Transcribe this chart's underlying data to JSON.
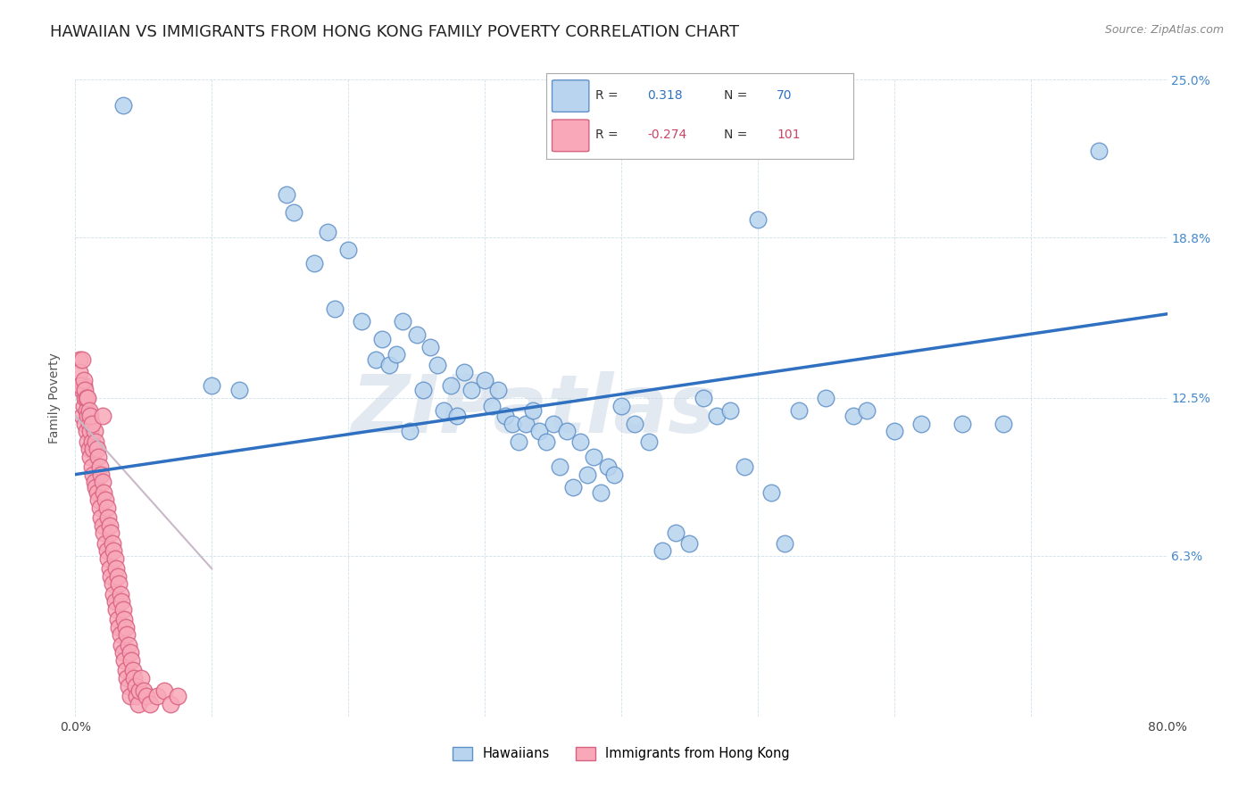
{
  "title": "HAWAIIAN VS IMMIGRANTS FROM HONG KONG FAMILY POVERTY CORRELATION CHART",
  "source_text": "Source: ZipAtlas.com",
  "ylabel": "Family Poverty",
  "xlim": [
    0.0,
    0.8
  ],
  "ylim": [
    0.0,
    0.25
  ],
  "yticks": [
    0.063,
    0.125,
    0.188,
    0.25
  ],
  "ytick_labels": [
    "6.3%",
    "12.5%",
    "18.8%",
    "25.0%"
  ],
  "xtick_labels": [
    "0.0%",
    "",
    "",
    "",
    "",
    "",
    "",
    "",
    "80.0%"
  ],
  "hawaiians_scatter": [
    [
      0.035,
      0.24
    ],
    [
      0.1,
      0.13
    ],
    [
      0.12,
      0.128
    ],
    [
      0.155,
      0.205
    ],
    [
      0.16,
      0.198
    ],
    [
      0.175,
      0.178
    ],
    [
      0.185,
      0.19
    ],
    [
      0.19,
      0.16
    ],
    [
      0.2,
      0.183
    ],
    [
      0.21,
      0.155
    ],
    [
      0.22,
      0.14
    ],
    [
      0.225,
      0.148
    ],
    [
      0.23,
      0.138
    ],
    [
      0.235,
      0.142
    ],
    [
      0.24,
      0.155
    ],
    [
      0.245,
      0.112
    ],
    [
      0.25,
      0.15
    ],
    [
      0.255,
      0.128
    ],
    [
      0.26,
      0.145
    ],
    [
      0.265,
      0.138
    ],
    [
      0.27,
      0.12
    ],
    [
      0.275,
      0.13
    ],
    [
      0.28,
      0.118
    ],
    [
      0.285,
      0.135
    ],
    [
      0.29,
      0.128
    ],
    [
      0.3,
      0.132
    ],
    [
      0.305,
      0.122
    ],
    [
      0.31,
      0.128
    ],
    [
      0.315,
      0.118
    ],
    [
      0.32,
      0.115
    ],
    [
      0.325,
      0.108
    ],
    [
      0.33,
      0.115
    ],
    [
      0.335,
      0.12
    ],
    [
      0.34,
      0.112
    ],
    [
      0.345,
      0.108
    ],
    [
      0.35,
      0.115
    ],
    [
      0.355,
      0.098
    ],
    [
      0.36,
      0.112
    ],
    [
      0.365,
      0.09
    ],
    [
      0.37,
      0.108
    ],
    [
      0.375,
      0.095
    ],
    [
      0.38,
      0.102
    ],
    [
      0.385,
      0.088
    ],
    [
      0.39,
      0.098
    ],
    [
      0.395,
      0.095
    ],
    [
      0.4,
      0.122
    ],
    [
      0.41,
      0.115
    ],
    [
      0.42,
      0.108
    ],
    [
      0.43,
      0.065
    ],
    [
      0.44,
      0.072
    ],
    [
      0.45,
      0.068
    ],
    [
      0.46,
      0.125
    ],
    [
      0.47,
      0.118
    ],
    [
      0.48,
      0.12
    ],
    [
      0.49,
      0.098
    ],
    [
      0.5,
      0.195
    ],
    [
      0.51,
      0.088
    ],
    [
      0.52,
      0.068
    ],
    [
      0.53,
      0.12
    ],
    [
      0.55,
      0.125
    ],
    [
      0.57,
      0.118
    ],
    [
      0.58,
      0.12
    ],
    [
      0.6,
      0.112
    ],
    [
      0.62,
      0.115
    ],
    [
      0.65,
      0.115
    ],
    [
      0.68,
      0.115
    ],
    [
      0.75,
      0.222
    ]
  ],
  "hk_scatter": [
    [
      0.003,
      0.14
    ],
    [
      0.005,
      0.128
    ],
    [
      0.005,
      0.118
    ],
    [
      0.006,
      0.13
    ],
    [
      0.006,
      0.122
    ],
    [
      0.007,
      0.125
    ],
    [
      0.007,
      0.115
    ],
    [
      0.008,
      0.12
    ],
    [
      0.008,
      0.112
    ],
    [
      0.009,
      0.118
    ],
    [
      0.009,
      0.108
    ],
    [
      0.01,
      0.115
    ],
    [
      0.01,
      0.105
    ],
    [
      0.011,
      0.112
    ],
    [
      0.011,
      0.102
    ],
    [
      0.012,
      0.108
    ],
    [
      0.012,
      0.098
    ],
    [
      0.013,
      0.105
    ],
    [
      0.013,
      0.095
    ],
    [
      0.014,
      0.112
    ],
    [
      0.014,
      0.092
    ],
    [
      0.015,
      0.108
    ],
    [
      0.015,
      0.09
    ],
    [
      0.016,
      0.105
    ],
    [
      0.016,
      0.088
    ],
    [
      0.017,
      0.102
    ],
    [
      0.017,
      0.085
    ],
    [
      0.018,
      0.098
    ],
    [
      0.018,
      0.082
    ],
    [
      0.019,
      0.095
    ],
    [
      0.019,
      0.078
    ],
    [
      0.02,
      0.092
    ],
    [
      0.02,
      0.075
    ],
    [
      0.021,
      0.088
    ],
    [
      0.021,
      0.072
    ],
    [
      0.022,
      0.085
    ],
    [
      0.022,
      0.068
    ],
    [
      0.023,
      0.082
    ],
    [
      0.023,
      0.065
    ],
    [
      0.024,
      0.078
    ],
    [
      0.024,
      0.062
    ],
    [
      0.025,
      0.075
    ],
    [
      0.025,
      0.058
    ],
    [
      0.026,
      0.072
    ],
    [
      0.026,
      0.055
    ],
    [
      0.027,
      0.068
    ],
    [
      0.027,
      0.052
    ],
    [
      0.028,
      0.065
    ],
    [
      0.028,
      0.048
    ],
    [
      0.029,
      0.062
    ],
    [
      0.029,
      0.045
    ],
    [
      0.03,
      0.058
    ],
    [
      0.03,
      0.042
    ],
    [
      0.031,
      0.055
    ],
    [
      0.031,
      0.038
    ],
    [
      0.032,
      0.052
    ],
    [
      0.032,
      0.035
    ],
    [
      0.033,
      0.048
    ],
    [
      0.033,
      0.032
    ],
    [
      0.034,
      0.045
    ],
    [
      0.034,
      0.028
    ],
    [
      0.035,
      0.042
    ],
    [
      0.035,
      0.025
    ],
    [
      0.036,
      0.038
    ],
    [
      0.036,
      0.022
    ],
    [
      0.037,
      0.035
    ],
    [
      0.037,
      0.018
    ],
    [
      0.038,
      0.032
    ],
    [
      0.038,
      0.015
    ],
    [
      0.039,
      0.028
    ],
    [
      0.039,
      0.012
    ],
    [
      0.04,
      0.025
    ],
    [
      0.04,
      0.008
    ],
    [
      0.041,
      0.022
    ],
    [
      0.042,
      0.018
    ],
    [
      0.043,
      0.015
    ],
    [
      0.044,
      0.012
    ],
    [
      0.045,
      0.008
    ],
    [
      0.046,
      0.005
    ],
    [
      0.047,
      0.01
    ],
    [
      0.048,
      0.015
    ],
    [
      0.05,
      0.01
    ],
    [
      0.052,
      0.008
    ],
    [
      0.055,
      0.005
    ],
    [
      0.06,
      0.008
    ],
    [
      0.065,
      0.01
    ],
    [
      0.07,
      0.005
    ],
    [
      0.075,
      0.008
    ],
    [
      0.003,
      0.135
    ],
    [
      0.004,
      0.13
    ],
    [
      0.005,
      0.14
    ],
    [
      0.006,
      0.132
    ],
    [
      0.007,
      0.128
    ],
    [
      0.008,
      0.125
    ],
    [
      0.009,
      0.125
    ],
    [
      0.01,
      0.12
    ],
    [
      0.011,
      0.118
    ],
    [
      0.012,
      0.115
    ],
    [
      0.02,
      0.118
    ]
  ],
  "hawaiians_line": [
    [
      0.0,
      0.095
    ],
    [
      0.8,
      0.158
    ]
  ],
  "hk_line": [
    [
      0.0,
      0.118
    ],
    [
      0.1,
      0.058
    ]
  ],
  "watermark": "ZIPatlas",
  "background_color": "#ffffff",
  "scatter_blue_color": "#b8d4ee",
  "scatter_blue_edge": "#6090c8",
  "scatter_pink_color": "#f8a8b8",
  "scatter_pink_edge": "#d86080",
  "line_blue_color": "#3070c0",
  "line_pink_color": "#c8b8c8",
  "title_fontsize": 13,
  "tick_fontsize": 10,
  "source_fontsize": 9
}
